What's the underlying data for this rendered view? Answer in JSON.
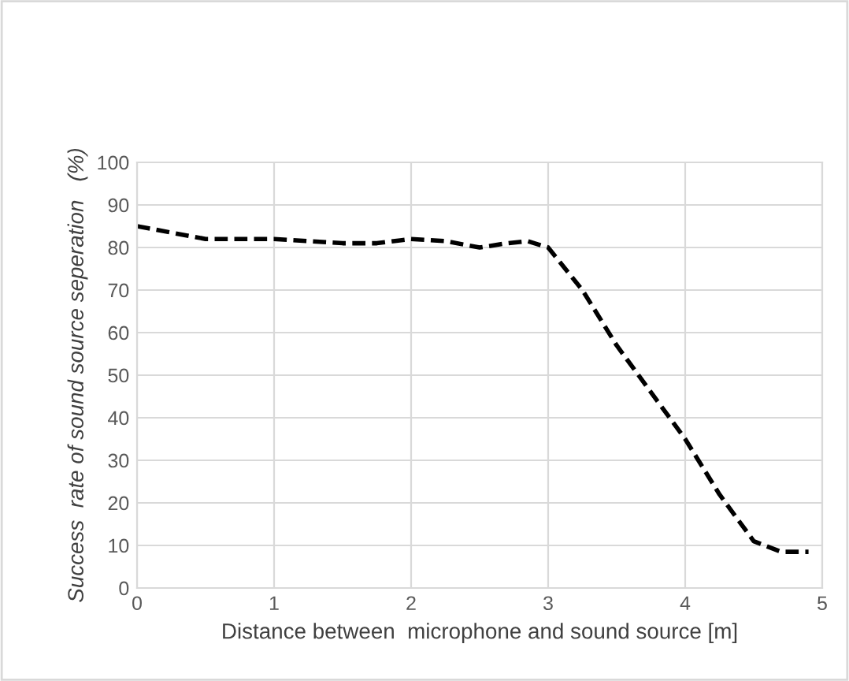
{
  "chart_data": {
    "type": "line",
    "xlabel": "Distance between  microphone and sound source [m]",
    "ylabel": "Success  rate of sound source seperation   (%)",
    "x": [
      0,
      0.25,
      0.5,
      0.75,
      1,
      1.25,
      1.5,
      1.75,
      2,
      2.25,
      2.5,
      2.7,
      2.85,
      3,
      3.25,
      3.5,
      3.75,
      4,
      4.25,
      4.5,
      4.7,
      4.9
    ],
    "series": [
      {
        "color": "#000000",
        "values": [
          85,
          83.5,
          82,
          82,
          82,
          81.5,
          81,
          81,
          82,
          81.5,
          80,
          81,
          81.5,
          80,
          70,
          57,
          46,
          35,
          22,
          11,
          8.5,
          8.5
        ]
      }
    ],
    "xlim": [
      0,
      5
    ],
    "xticks": [
      0,
      1,
      2,
      3,
      4,
      5
    ],
    "ylim": [
      0,
      100
    ],
    "yticks": [
      0,
      10,
      20,
      30,
      40,
      50,
      60,
      70,
      80,
      90,
      100
    ],
    "grid": true,
    "line_style": "dashed",
    "marker": "none"
  }
}
